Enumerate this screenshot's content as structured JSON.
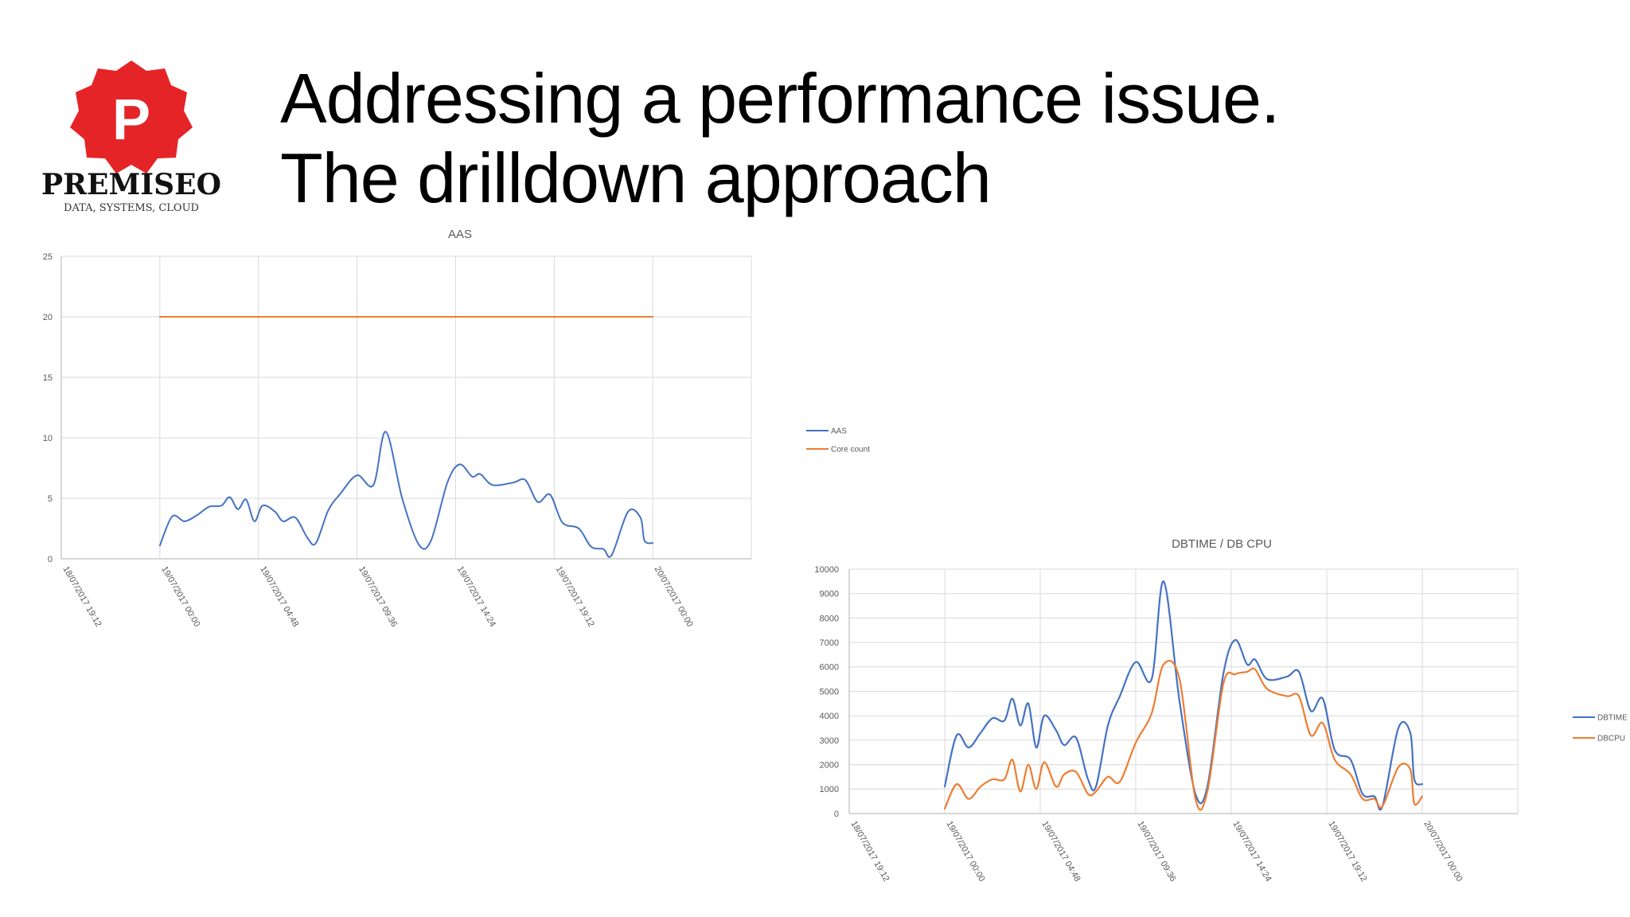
{
  "header": {
    "title_line1": "Addressing a performance issue.",
    "title_line2": "The drilldown approach"
  },
  "logo": {
    "letter": "P",
    "brand": "PREMISEO",
    "tagline": "DATA, SYSTEMS, CLOUD",
    "badge_color": "#e52427"
  },
  "colors": {
    "blue": "#4472c4",
    "orange": "#ed7d31",
    "grid": "#d9d9d9",
    "axis": "#bfbfbf"
  },
  "chart_data": [
    {
      "type": "line",
      "title": "AAS",
      "xlabel": "",
      "ylabel": "",
      "ylim": [
        0,
        25
      ],
      "yticks": [
        0,
        5,
        10,
        15,
        20,
        25
      ],
      "xlim": [
        "18/07/2017 19:12",
        "20/07/2017 04:48"
      ],
      "xticks": [
        "18/07/2017 19:12",
        "19/07/2017 00:00",
        "19/07/2017 04:48",
        "19/07/2017 09:36",
        "19/07/2017 14:24",
        "19/07/2017 19:12",
        "20/07/2017 00:00"
      ],
      "grid": true,
      "legend": "right",
      "series": [
        {
          "name": "AAS",
          "color": "#4472c4",
          "points": [
            [
              "19/07/2017 00:00",
              1.1
            ],
            [
              "19/07/2017 00:36",
              3.5
            ],
            [
              "19/07/2017 01:12",
              3.1
            ],
            [
              "19/07/2017 01:48",
              3.6
            ],
            [
              "19/07/2017 02:24",
              4.3
            ],
            [
              "19/07/2017 03:00",
              4.4
            ],
            [
              "19/07/2017 03:24",
              5.1
            ],
            [
              "19/07/2017 03:48",
              4.1
            ],
            [
              "19/07/2017 04:12",
              4.9
            ],
            [
              "19/07/2017 04:36",
              3.1
            ],
            [
              "19/07/2017 05:00",
              4.4
            ],
            [
              "19/07/2017 05:36",
              3.9
            ],
            [
              "19/07/2017 06:00",
              3.1
            ],
            [
              "19/07/2017 06:36",
              3.4
            ],
            [
              "19/07/2017 07:12",
              1.7
            ],
            [
              "19/07/2017 07:36",
              1.3
            ],
            [
              "19/07/2017 08:12",
              4.0
            ],
            [
              "19/07/2017 08:48",
              5.4
            ],
            [
              "19/07/2017 09:36",
              6.9
            ],
            [
              "19/07/2017 10:24",
              6.1
            ],
            [
              "19/07/2017 11:00",
              10.5
            ],
            [
              "19/07/2017 11:48",
              5.0
            ],
            [
              "19/07/2017 12:36",
              1.2
            ],
            [
              "19/07/2017 13:12",
              1.5
            ],
            [
              "19/07/2017 14:00",
              6.3
            ],
            [
              "19/07/2017 14:36",
              7.8
            ],
            [
              "19/07/2017 15:12",
              6.8
            ],
            [
              "19/07/2017 15:36",
              7.0
            ],
            [
              "19/07/2017 16:12",
              6.1
            ],
            [
              "19/07/2017 17:12",
              6.3
            ],
            [
              "19/07/2017 17:48",
              6.5
            ],
            [
              "19/07/2017 18:24",
              4.7
            ],
            [
              "19/07/2017 19:00",
              5.3
            ],
            [
              "19/07/2017 19:36",
              3.0
            ],
            [
              "19/07/2017 20:24",
              2.5
            ],
            [
              "19/07/2017 21:00",
              1.0
            ],
            [
              "19/07/2017 21:36",
              0.8
            ],
            [
              "19/07/2017 22:00",
              0.3
            ],
            [
              "19/07/2017 22:48",
              3.9
            ],
            [
              "19/07/2017 23:24",
              3.4
            ],
            [
              "19/07/2017 23:36",
              1.5
            ],
            [
              "20/07/2017 00:00",
              1.3
            ]
          ]
        },
        {
          "name": "Core count",
          "color": "#ed7d31",
          "points": [
            [
              "19/07/2017 00:00",
              20
            ],
            [
              "20/07/2017 00:00",
              20
            ]
          ]
        }
      ]
    },
    {
      "type": "line",
      "title": "DBTIME / DB CPU",
      "xlabel": "",
      "ylabel": "",
      "ylim": [
        0,
        10000
      ],
      "yticks": [
        0,
        1000,
        2000,
        3000,
        4000,
        5000,
        6000,
        7000,
        8000,
        9000,
        10000
      ],
      "xlim": [
        "18/07/2017 19:12",
        "20/07/2017 04:48"
      ],
      "xticks": [
        "18/07/2017 19:12",
        "19/07/2017 00:00",
        "19/07/2017 04:48",
        "19/07/2017 09:36",
        "19/07/2017 14:24",
        "19/07/2017 19:12",
        "20/07/2017 00:00"
      ],
      "grid": true,
      "legend": "right",
      "series": [
        {
          "name": "DBTIME",
          "color": "#4472c4",
          "points": [
            [
              "19/07/2017 00:00",
              1100
            ],
            [
              "19/07/2017 00:36",
              3200
            ],
            [
              "19/07/2017 01:12",
              2700
            ],
            [
              "19/07/2017 01:48",
              3300
            ],
            [
              "19/07/2017 02:24",
              3900
            ],
            [
              "19/07/2017 03:00",
              3800
            ],
            [
              "19/07/2017 03:24",
              4700
            ],
            [
              "19/07/2017 03:48",
              3600
            ],
            [
              "19/07/2017 04:12",
              4500
            ],
            [
              "19/07/2017 04:36",
              2700
            ],
            [
              "19/07/2017 05:00",
              4000
            ],
            [
              "19/07/2017 05:36",
              3400
            ],
            [
              "19/07/2017 06:00",
              2800
            ],
            [
              "19/07/2017 06:36",
              3100
            ],
            [
              "19/07/2017 07:12",
              1400
            ],
            [
              "19/07/2017 07:36",
              1100
            ],
            [
              "19/07/2017 08:12",
              3600
            ],
            [
              "19/07/2017 08:48",
              4800
            ],
            [
              "19/07/2017 09:36",
              6200
            ],
            [
              "19/07/2017 10:24",
              5500
            ],
            [
              "19/07/2017 11:00",
              9500
            ],
            [
              "19/07/2017 11:48",
              4600
            ],
            [
              "19/07/2017 12:36",
              800
            ],
            [
              "19/07/2017 13:12",
              1100
            ],
            [
              "19/07/2017 14:00",
              5700
            ],
            [
              "19/07/2017 14:36",
              7100
            ],
            [
              "19/07/2017 15:12",
              6100
            ],
            [
              "19/07/2017 15:36",
              6300
            ],
            [
              "19/07/2017 16:12",
              5500
            ],
            [
              "19/07/2017 17:12",
              5600
            ],
            [
              "19/07/2017 17:48",
              5800
            ],
            [
              "19/07/2017 18:24",
              4200
            ],
            [
              "19/07/2017 19:00",
              4700
            ],
            [
              "19/07/2017 19:36",
              2600
            ],
            [
              "19/07/2017 20:24",
              2200
            ],
            [
              "19/07/2017 21:00",
              800
            ],
            [
              "19/07/2017 21:36",
              700
            ],
            [
              "19/07/2017 22:00",
              300
            ],
            [
              "19/07/2017 22:48",
              3500
            ],
            [
              "19/07/2017 23:24",
              3300
            ],
            [
              "19/07/2017 23:36",
              1400
            ],
            [
              "20/07/2017 00:00",
              1200
            ]
          ]
        },
        {
          "name": "DBCPU",
          "color": "#ed7d31",
          "points": [
            [
              "19/07/2017 00:00",
              200
            ],
            [
              "19/07/2017 00:36",
              1200
            ],
            [
              "19/07/2017 01:12",
              600
            ],
            [
              "19/07/2017 01:48",
              1100
            ],
            [
              "19/07/2017 02:24",
              1400
            ],
            [
              "19/07/2017 03:00",
              1400
            ],
            [
              "19/07/2017 03:24",
              2200
            ],
            [
              "19/07/2017 03:48",
              900
            ],
            [
              "19/07/2017 04:12",
              2000
            ],
            [
              "19/07/2017 04:36",
              1000
            ],
            [
              "19/07/2017 05:00",
              2100
            ],
            [
              "19/07/2017 05:36",
              1100
            ],
            [
              "19/07/2017 06:00",
              1600
            ],
            [
              "19/07/2017 06:36",
              1700
            ],
            [
              "19/07/2017 07:12",
              800
            ],
            [
              "19/07/2017 07:36",
              900
            ],
            [
              "19/07/2017 08:12",
              1500
            ],
            [
              "19/07/2017 08:48",
              1300
            ],
            [
              "19/07/2017 09:36",
              2900
            ],
            [
              "19/07/2017 10:24",
              4100
            ],
            [
              "19/07/2017 11:00",
              6100
            ],
            [
              "19/07/2017 11:48",
              5500
            ],
            [
              "19/07/2017 12:36",
              600
            ],
            [
              "19/07/2017 13:12",
              900
            ],
            [
              "19/07/2017 14:00",
              5300
            ],
            [
              "19/07/2017 14:36",
              5700
            ],
            [
              "19/07/2017 15:12",
              5800
            ],
            [
              "19/07/2017 15:36",
              5900
            ],
            [
              "19/07/2017 16:12",
              5100
            ],
            [
              "19/07/2017 17:12",
              4800
            ],
            [
              "19/07/2017 17:48",
              4800
            ],
            [
              "19/07/2017 18:24",
              3200
            ],
            [
              "19/07/2017 19:00",
              3700
            ],
            [
              "19/07/2017 19:36",
              2200
            ],
            [
              "19/07/2017 20:24",
              1600
            ],
            [
              "19/07/2017 21:00",
              600
            ],
            [
              "19/07/2017 21:36",
              600
            ],
            [
              "19/07/2017 22:00",
              300
            ],
            [
              "19/07/2017 22:48",
              1900
            ],
            [
              "19/07/2017 23:24",
              1800
            ],
            [
              "19/07/2017 23:36",
              400
            ],
            [
              "20/07/2017 00:00",
              700
            ]
          ]
        }
      ]
    }
  ]
}
